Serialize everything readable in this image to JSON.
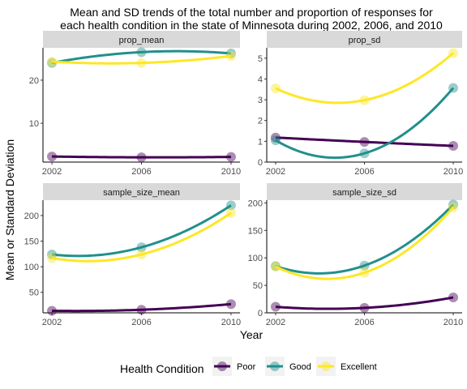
{
  "chart_data": {
    "type": "line",
    "title": "Mean and SD trends of the total number and proportion of responses for each health condition in the state of Minnesota during 2002, 2006, and 2010",
    "title_lines": [
      "Mean and SD trends of the total number and proportion of responses for",
      "each health condition in the state of Minnesota during 2002, 2006, and 2010"
    ],
    "xlabel": "Year",
    "ylabel": "Mean or Standard Deviation",
    "x": [
      2002,
      2006,
      2010
    ],
    "x_ticks": [
      "2002",
      "2006",
      "2010"
    ],
    "legend": {
      "title": "Health Condition",
      "position": "bottom",
      "entries": [
        "Poor",
        "Good",
        "Excellent"
      ]
    },
    "colors": {
      "Poor": "#440154",
      "Good": "#21908C",
      "Excellent": "#FDE725"
    },
    "grid": false,
    "panels": [
      {
        "name": "prop_mean",
        "ylim": [
          1,
          27.5
        ],
        "y_ticks": [
          10,
          20
        ],
        "series": [
          {
            "name": "Poor",
            "values": [
              2.3,
              2.1,
              2.2
            ]
          },
          {
            "name": "Good",
            "values": [
              24.0,
              26.5,
              26.2
            ]
          },
          {
            "name": "Excellent",
            "values": [
              24.3,
              24.0,
              25.6
            ]
          }
        ]
      },
      {
        "name": "prop_sd",
        "ylim": [
          0,
          5.5
        ],
        "y_ticks": [
          0,
          1,
          2,
          3,
          4,
          5
        ],
        "series": [
          {
            "name": "Poor",
            "values": [
              1.18,
              0.97,
              0.78
            ]
          },
          {
            "name": "Good",
            "values": [
              1.05,
              0.42,
              3.57
            ]
          },
          {
            "name": "Excellent",
            "values": [
              3.55,
              2.98,
              5.25
            ]
          }
        ]
      },
      {
        "name": "sample_size_mean",
        "ylim": [
          10,
          230
        ],
        "y_ticks": [
          50,
          100,
          150,
          200
        ],
        "series": [
          {
            "name": "Poor",
            "values": [
              14,
              16,
              27
            ]
          },
          {
            "name": "Good",
            "values": [
              124,
              138,
              220
            ]
          },
          {
            "name": "Excellent",
            "values": [
              117,
              124,
              205
            ]
          }
        ]
      },
      {
        "name": "sample_size_sd",
        "ylim": [
          0,
          205
        ],
        "y_ticks": [
          0,
          50,
          100,
          150,
          200
        ],
        "series": [
          {
            "name": "Poor",
            "values": [
              11,
              9,
              28
            ]
          },
          {
            "name": "Good",
            "values": [
              85,
              86,
              197
            ]
          },
          {
            "name": "Excellent",
            "values": [
              84,
              73,
              192
            ]
          }
        ]
      }
    ]
  }
}
